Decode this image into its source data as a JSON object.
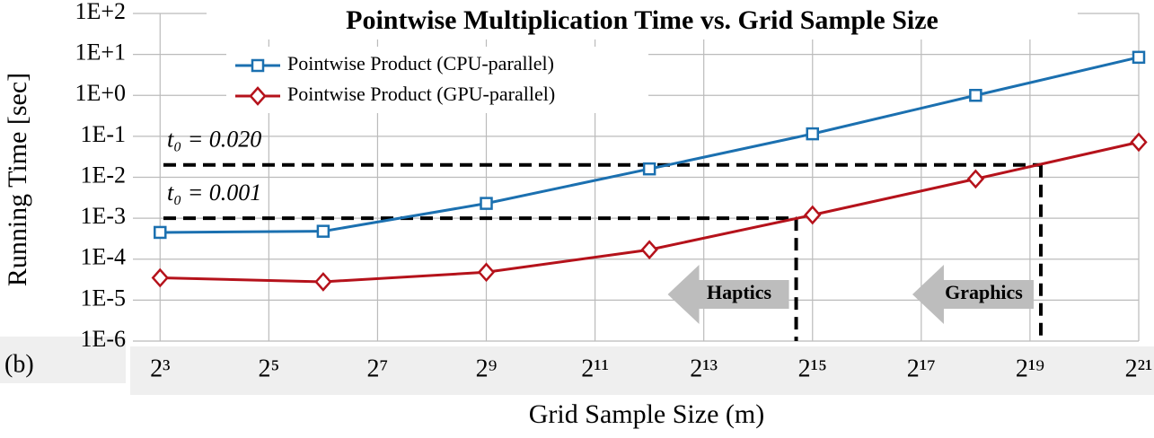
{
  "chart_data": {
    "type": "line",
    "title": "Pointwise Multiplication Time vs. Grid Sample Size",
    "panel_label": "(b)",
    "x_label": "Grid Sample Size (m)",
    "y_label": "Running Time [sec]",
    "x": [
      8,
      64,
      512,
      4096,
      32768,
      262144,
      2097152
    ],
    "series": [
      {
        "name": "Pointwise Product (CPU-parallel)",
        "color": "#1b70b0",
        "marker": "square",
        "values": [
          0.00045,
          0.00048,
          0.0023,
          0.016,
          0.115,
          1.0,
          8.5
        ]
      },
      {
        "name": "Pointwise Product (GPU-parallel)",
        "color": "#b5121b",
        "marker": "diamond",
        "values": [
          3.5e-05,
          2.8e-05,
          4.8e-05,
          0.00017,
          0.0012,
          0.0091,
          0.072
        ]
      }
    ],
    "xscale": "log2",
    "yscale": "log",
    "xlim": [
      5.657,
      2097152
    ],
    "xticks": [
      {
        "value": 8,
        "label": "2³"
      },
      {
        "value": 32,
        "label": "2⁵"
      },
      {
        "value": 128,
        "label": "2⁷"
      },
      {
        "value": 512,
        "label": "2⁹"
      },
      {
        "value": 2048,
        "label": "2¹¹"
      },
      {
        "value": 8192,
        "label": "2¹³"
      },
      {
        "value": 32768,
        "label": "2¹⁵"
      },
      {
        "value": 131072,
        "label": "2¹⁷"
      },
      {
        "value": 524288,
        "label": "2¹⁹"
      },
      {
        "value": 2097152,
        "label": "2²¹"
      }
    ],
    "ylim": [
      1e-06,
      100
    ],
    "yticks": [
      {
        "value": 1e-06,
        "label": "1E-6"
      },
      {
        "value": 1e-05,
        "label": "1E-5"
      },
      {
        "value": 0.0001,
        "label": "1E-4"
      },
      {
        "value": 0.001,
        "label": "1E-3"
      },
      {
        "value": 0.01,
        "label": "1E-2"
      },
      {
        "value": 0.1,
        "label": "1E-1"
      },
      {
        "value": 1,
        "label": "1E+0"
      },
      {
        "value": 10,
        "label": "1E+1"
      },
      {
        "value": 100,
        "label": "1E+2"
      }
    ],
    "grid": true,
    "legend": "top-left",
    "reference_lines": [
      {
        "label": "t₀ = 0.020",
        "y": 0.02,
        "x": 602000,
        "region": "Graphics"
      },
      {
        "label": "t₀ = 0.001",
        "y": 0.001,
        "x": 26600,
        "region": "Haptics"
      }
    ]
  }
}
